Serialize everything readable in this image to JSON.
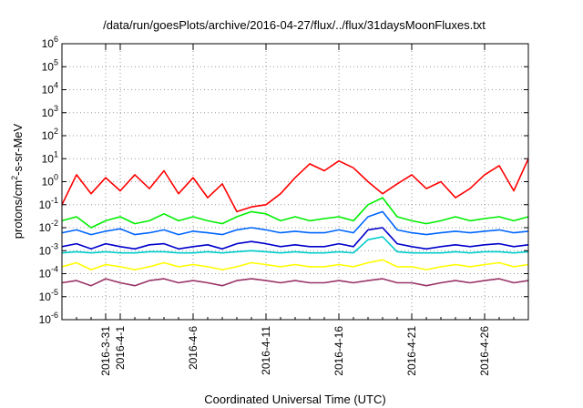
{
  "chart_data": {
    "type": "line",
    "title": "/data/run/goesPlots/archive/2016-04-27/flux/../flux/31daysMoonFluxes.txt",
    "xlabel": "Coordinated Universal Time (UTC)",
    "ylabel": {
      "base": "protons/cm",
      "sup": "2",
      "rest": "-s-sr-MeV"
    },
    "yscale": "log",
    "ylim": [
      1e-06,
      1000000.0
    ],
    "yticks": [
      {
        "value": 1e-06,
        "base": "10",
        "exp": "-6"
      },
      {
        "value": 1e-05,
        "base": "10",
        "exp": "-5"
      },
      {
        "value": 0.0001,
        "base": "10",
        "exp": "-4"
      },
      {
        "value": 0.001,
        "base": "10",
        "exp": "-3"
      },
      {
        "value": 0.01,
        "base": "10",
        "exp": "-2"
      },
      {
        "value": 0.1,
        "base": "10",
        "exp": "-1"
      },
      {
        "value": 1,
        "base": "10",
        "exp": "0"
      },
      {
        "value": 10,
        "base": "10",
        "exp": "1"
      },
      {
        "value": 100,
        "base": "10",
        "exp": "2"
      },
      {
        "value": 1000,
        "base": "10",
        "exp": "3"
      },
      {
        "value": 10000,
        "base": "10",
        "exp": "4"
      },
      {
        "value": 100000,
        "base": "10",
        "exp": "5"
      },
      {
        "value": 1000000,
        "base": "10",
        "exp": "6"
      }
    ],
    "xlim": [
      "2016-03-28T00:00",
      "2016-04-29T00:00"
    ],
    "xticks": [
      {
        "label": "2016-3-31",
        "date": "2016-03-31"
      },
      {
        "label": "2016-4-1",
        "date": "2016-04-01"
      },
      {
        "label": "2016-4-6",
        "date": "2016-04-06"
      },
      {
        "label": "2016-4-11",
        "date": "2016-04-11"
      },
      {
        "label": "2016-4-16",
        "date": "2016-04-16"
      },
      {
        "label": "2016-4-21",
        "date": "2016-04-21"
      },
      {
        "label": "2016-4-26",
        "date": "2016-04-26"
      }
    ],
    "grid": true,
    "series": [
      {
        "color": "#ff0000",
        "x": [
          "2016-03-28",
          "2016-03-29",
          "2016-03-30",
          "2016-03-31",
          "2016-04-01",
          "2016-04-02",
          "2016-04-03",
          "2016-04-04",
          "2016-04-05",
          "2016-04-06",
          "2016-04-07",
          "2016-04-08",
          "2016-04-09",
          "2016-04-10",
          "2016-04-11",
          "2016-04-12",
          "2016-04-13",
          "2016-04-14",
          "2016-04-15",
          "2016-04-16",
          "2016-04-17",
          "2016-04-18",
          "2016-04-19",
          "2016-04-20",
          "2016-04-21",
          "2016-04-22",
          "2016-04-23",
          "2016-04-24",
          "2016-04-25",
          "2016-04-26",
          "2016-04-27",
          "2016-04-28",
          "2016-04-29"
        ],
        "y": [
          0.1,
          2,
          0.3,
          1.5,
          0.4,
          2,
          0.5,
          3,
          0.3,
          1.5,
          0.2,
          0.8,
          0.05,
          0.08,
          0.1,
          0.3,
          1.5,
          6,
          3,
          8,
          4,
          1,
          0.3,
          0.8,
          2,
          0.5,
          1,
          0.2,
          0.5,
          2,
          5,
          0.4,
          10
        ]
      },
      {
        "color": "#00ee00",
        "x": [
          "2016-03-28",
          "2016-03-29",
          "2016-03-30",
          "2016-03-31",
          "2016-04-01",
          "2016-04-02",
          "2016-04-03",
          "2016-04-04",
          "2016-04-05",
          "2016-04-06",
          "2016-04-07",
          "2016-04-08",
          "2016-04-09",
          "2016-04-10",
          "2016-04-11",
          "2016-04-12",
          "2016-04-13",
          "2016-04-14",
          "2016-04-15",
          "2016-04-16",
          "2016-04-17",
          "2016-04-18",
          "2016-04-19",
          "2016-04-20",
          "2016-04-21",
          "2016-04-22",
          "2016-04-23",
          "2016-04-24",
          "2016-04-25",
          "2016-04-26",
          "2016-04-27",
          "2016-04-28",
          "2016-04-29"
        ],
        "y": [
          0.02,
          0.03,
          0.01,
          0.02,
          0.03,
          0.015,
          0.02,
          0.04,
          0.02,
          0.03,
          0.02,
          0.015,
          0.03,
          0.05,
          0.04,
          0.02,
          0.03,
          0.02,
          0.025,
          0.03,
          0.02,
          0.1,
          0.2,
          0.03,
          0.02,
          0.015,
          0.02,
          0.03,
          0.02,
          0.025,
          0.03,
          0.02,
          0.03
        ]
      },
      {
        "color": "#0066ff",
        "x": [
          "2016-03-28",
          "2016-03-29",
          "2016-03-30",
          "2016-03-31",
          "2016-04-01",
          "2016-04-02",
          "2016-04-03",
          "2016-04-04",
          "2016-04-05",
          "2016-04-06",
          "2016-04-07",
          "2016-04-08",
          "2016-04-09",
          "2016-04-10",
          "2016-04-11",
          "2016-04-12",
          "2016-04-13",
          "2016-04-14",
          "2016-04-15",
          "2016-04-16",
          "2016-04-17",
          "2016-04-18",
          "2016-04-19",
          "2016-04-20",
          "2016-04-21",
          "2016-04-22",
          "2016-04-23",
          "2016-04-24",
          "2016-04-25",
          "2016-04-26",
          "2016-04-27",
          "2016-04-28",
          "2016-04-29"
        ],
        "y": [
          0.006,
          0.008,
          0.005,
          0.007,
          0.009,
          0.005,
          0.006,
          0.008,
          0.005,
          0.007,
          0.006,
          0.005,
          0.008,
          0.01,
          0.008,
          0.006,
          0.007,
          0.006,
          0.006,
          0.008,
          0.006,
          0.03,
          0.05,
          0.008,
          0.006,
          0.005,
          0.006,
          0.007,
          0.006,
          0.007,
          0.008,
          0.006,
          0.007
        ]
      },
      {
        "color": "#0000cc",
        "x": [
          "2016-03-28",
          "2016-03-29",
          "2016-03-30",
          "2016-03-31",
          "2016-04-01",
          "2016-04-02",
          "2016-04-03",
          "2016-04-04",
          "2016-04-05",
          "2016-04-06",
          "2016-04-07",
          "2016-04-08",
          "2016-04-09",
          "2016-04-10",
          "2016-04-11",
          "2016-04-12",
          "2016-04-13",
          "2016-04-14",
          "2016-04-15",
          "2016-04-16",
          "2016-04-17",
          "2016-04-18",
          "2016-04-19",
          "2016-04-20",
          "2016-04-21",
          "2016-04-22",
          "2016-04-23",
          "2016-04-24",
          "2016-04-25",
          "2016-04-26",
          "2016-04-27",
          "2016-04-28",
          "2016-04-29"
        ],
        "y": [
          0.0015,
          0.002,
          0.0012,
          0.002,
          0.0015,
          0.0012,
          0.0018,
          0.002,
          0.0012,
          0.0015,
          0.0018,
          0.0012,
          0.002,
          0.0025,
          0.002,
          0.0015,
          0.0018,
          0.0015,
          0.0015,
          0.002,
          0.0015,
          0.008,
          0.01,
          0.002,
          0.0015,
          0.0012,
          0.0015,
          0.0018,
          0.0015,
          0.0018,
          0.002,
          0.0015,
          0.0018
        ]
      },
      {
        "color": "#00cccc",
        "x": [
          "2016-03-28",
          "2016-03-29",
          "2016-03-30",
          "2016-03-31",
          "2016-04-01",
          "2016-04-02",
          "2016-04-03",
          "2016-04-04",
          "2016-04-05",
          "2016-04-06",
          "2016-04-07",
          "2016-04-08",
          "2016-04-09",
          "2016-04-10",
          "2016-04-11",
          "2016-04-12",
          "2016-04-13",
          "2016-04-14",
          "2016-04-15",
          "2016-04-16",
          "2016-04-17",
          "2016-04-18",
          "2016-04-19",
          "2016-04-20",
          "2016-04-21",
          "2016-04-22",
          "2016-04-23",
          "2016-04-24",
          "2016-04-25",
          "2016-04-26",
          "2016-04-27",
          "2016-04-28",
          "2016-04-29"
        ],
        "y": [
          0.0008,
          0.0009,
          0.0008,
          0.0009,
          0.0008,
          0.0008,
          0.0009,
          0.0009,
          0.0008,
          0.0008,
          0.0009,
          0.0008,
          0.0009,
          0.001,
          0.0009,
          0.0008,
          0.0009,
          0.0008,
          0.0008,
          0.0009,
          0.0008,
          0.003,
          0.004,
          0.0009,
          0.0008,
          0.0008,
          0.0008,
          0.0009,
          0.0008,
          0.0009,
          0.0009,
          0.0008,
          0.0009
        ]
      },
      {
        "color": "#ffff00",
        "x": [
          "2016-03-28",
          "2016-03-29",
          "2016-03-30",
          "2016-03-31",
          "2016-04-01",
          "2016-04-02",
          "2016-04-03",
          "2016-04-04",
          "2016-04-05",
          "2016-04-06",
          "2016-04-07",
          "2016-04-08",
          "2016-04-09",
          "2016-04-10",
          "2016-04-11",
          "2016-04-12",
          "2016-04-13",
          "2016-04-14",
          "2016-04-15",
          "2016-04-16",
          "2016-04-17",
          "2016-04-18",
          "2016-04-19",
          "2016-04-20",
          "2016-04-21",
          "2016-04-22",
          "2016-04-23",
          "2016-04-24",
          "2016-04-25",
          "2016-04-26",
          "2016-04-27",
          "2016-04-28",
          "2016-04-29"
        ],
        "y": [
          0.0002,
          0.0003,
          0.00015,
          0.00025,
          0.0002,
          0.00015,
          0.0002,
          0.0003,
          0.0002,
          0.00025,
          0.0002,
          0.00015,
          0.0002,
          0.0003,
          0.00025,
          0.0002,
          0.00025,
          0.0002,
          0.0002,
          0.00025,
          0.0002,
          0.0003,
          0.0004,
          0.0002,
          0.0002,
          0.00015,
          0.0002,
          0.00025,
          0.0002,
          0.00025,
          0.0003,
          0.0002,
          0.00025
        ]
      },
      {
        "color": "#993366",
        "x": [
          "2016-03-28",
          "2016-03-29",
          "2016-03-30",
          "2016-03-31",
          "2016-04-01",
          "2016-04-02",
          "2016-04-03",
          "2016-04-04",
          "2016-04-05",
          "2016-04-06",
          "2016-04-07",
          "2016-04-08",
          "2016-04-09",
          "2016-04-10",
          "2016-04-11",
          "2016-04-12",
          "2016-04-13",
          "2016-04-14",
          "2016-04-15",
          "2016-04-16",
          "2016-04-17",
          "2016-04-18",
          "2016-04-19",
          "2016-04-20",
          "2016-04-21",
          "2016-04-22",
          "2016-04-23",
          "2016-04-24",
          "2016-04-25",
          "2016-04-26",
          "2016-04-27",
          "2016-04-28",
          "2016-04-29"
        ],
        "y": [
          4e-05,
          5e-05,
          3e-05,
          6e-05,
          4e-05,
          3e-05,
          5e-05,
          6e-05,
          4e-05,
          5e-05,
          4e-05,
          3e-05,
          5e-05,
          6e-05,
          5e-05,
          4e-05,
          5e-05,
          4e-05,
          4e-05,
          5e-05,
          4e-05,
          5e-05,
          6e-05,
          4e-05,
          4e-05,
          3e-05,
          4e-05,
          5e-05,
          4e-05,
          5e-05,
          6e-05,
          4e-05,
          5e-05
        ]
      }
    ]
  }
}
